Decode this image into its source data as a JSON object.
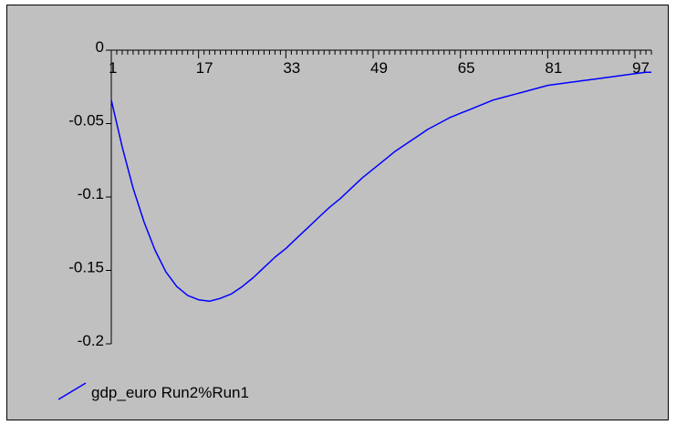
{
  "chart_data": {
    "type": "line",
    "title": "",
    "xlabel": "",
    "ylabel": "",
    "x_tick_labels": [
      "1",
      "17",
      "33",
      "49",
      "65",
      "81",
      "97"
    ],
    "y_tick_labels": [
      "0",
      "-0.05",
      "-0.1",
      "-0.15",
      "-0.2"
    ],
    "xlim": [
      1,
      100
    ],
    "ylim": [
      -0.2,
      0
    ],
    "grid": false,
    "legend_placement": "bottom-left",
    "series": [
      {
        "name": "gdp_euro Run2%Run1",
        "color": "#0000ff",
        "x": [
          1,
          3,
          5,
          7,
          9,
          11,
          13,
          15,
          17,
          19,
          21,
          23,
          25,
          27,
          29,
          31,
          33,
          35,
          37,
          39,
          41,
          43,
          45,
          47,
          49,
          51,
          53,
          55,
          57,
          59,
          61,
          63,
          65,
          67,
          69,
          71,
          73,
          75,
          77,
          79,
          81,
          83,
          85,
          87,
          89,
          91,
          93,
          95,
          97,
          99,
          100
        ],
        "values": [
          -0.034,
          -0.066,
          -0.094,
          -0.117,
          -0.136,
          -0.151,
          -0.161,
          -0.167,
          -0.17,
          -0.171,
          -0.169,
          -0.166,
          -0.161,
          -0.155,
          -0.148,
          -0.141,
          -0.135,
          -0.128,
          -0.121,
          -0.114,
          -0.107,
          -0.101,
          -0.094,
          -0.087,
          -0.081,
          -0.075,
          -0.069,
          -0.064,
          -0.059,
          -0.054,
          -0.05,
          -0.046,
          -0.043,
          -0.04,
          -0.037,
          -0.034,
          -0.032,
          -0.03,
          -0.028,
          -0.026,
          -0.024,
          -0.023,
          -0.022,
          -0.021,
          -0.02,
          -0.019,
          -0.018,
          -0.017,
          -0.016,
          -0.015,
          -0.015
        ]
      }
    ]
  }
}
